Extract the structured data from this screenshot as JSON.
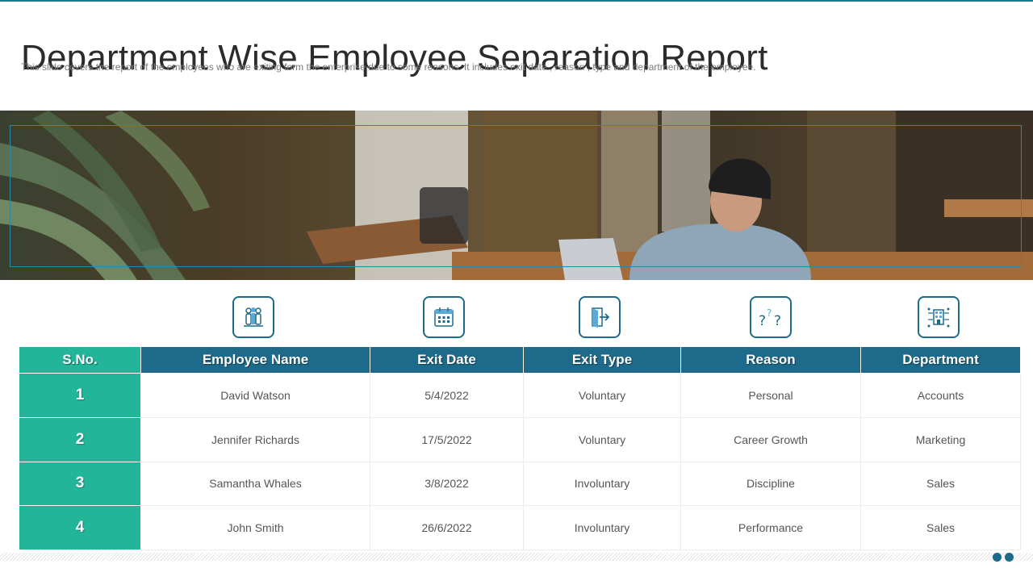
{
  "slide": {
    "title": "Department Wise Employee Separation Report",
    "subtitle": "This slide covers the report  of the employees who are exiting form the enterprise due to some reasons. It includes exit date ,  reason , type  and department of the employee."
  },
  "icons": [
    {
      "name": "employees-group-icon"
    },
    {
      "name": "calendar-icon"
    },
    {
      "name": "exit-door-icon"
    },
    {
      "name": "question-marks-icon"
    },
    {
      "name": "organization-building-icon"
    }
  ],
  "table": {
    "headers": [
      "S.No.",
      "Employee Name",
      "Exit Date",
      "Exit Type",
      "Reason",
      "Department"
    ],
    "rows": [
      {
        "sno": "1",
        "name": "David  Watson",
        "exit_date": "5/4/2022",
        "exit_type": "Voluntary",
        "reason": "Personal",
        "department": "Accounts"
      },
      {
        "sno": "2",
        "name": "Jennifer  Richards",
        "exit_date": "17/5/2022",
        "exit_type": "Voluntary",
        "reason": "Career  Growth",
        "department": "Marketing"
      },
      {
        "sno": "3",
        "name": "Samantha  Whales",
        "exit_date": "3/8/2022",
        "exit_type": "Involuntary",
        "reason": "Discipline",
        "department": "Sales"
      },
      {
        "sno": "4",
        "name": "John  Smith",
        "exit_date": "26/6/2022",
        "exit_type": "Involuntary",
        "reason": "Performance",
        "department": "Sales"
      }
    ]
  },
  "colors": {
    "header_blue": "#1e6a8a",
    "sno_green": "#22b59a",
    "accent": "#2b8aa0"
  }
}
